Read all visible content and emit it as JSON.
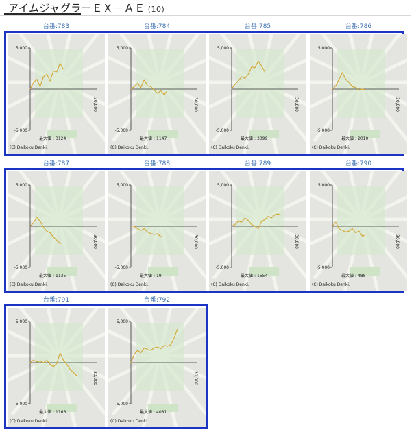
{
  "header": {
    "title": "アイムジャグラーＥＸ－ＡＥ",
    "count": "(10)"
  },
  "graph_common": {
    "y_top": "5,000",
    "y_bottom": "-5,000",
    "x_max": "30,000",
    "max_label": "最大値",
    "copyright": "(C) Daikoku Denki.",
    "line_color": "#d4a93a"
  },
  "machines": [
    {
      "label": "台番:783",
      "max": "3124",
      "points": [
        [
          0,
          0
        ],
        [
          1500,
          800
        ],
        [
          3000,
          1200
        ],
        [
          4500,
          300
        ],
        [
          6000,
          1500
        ],
        [
          7500,
          1800
        ],
        [
          9000,
          1000
        ],
        [
          10500,
          2200
        ],
        [
          12000,
          2100
        ],
        [
          13500,
          3124
        ],
        [
          15000,
          2400
        ]
      ]
    },
    {
      "label": "台番:784",
      "max": "1147",
      "points": [
        [
          0,
          0
        ],
        [
          1500,
          300
        ],
        [
          3000,
          700
        ],
        [
          4500,
          200
        ],
        [
          6000,
          1147
        ],
        [
          7500,
          400
        ],
        [
          9000,
          300
        ],
        [
          10500,
          -100
        ],
        [
          12000,
          -500
        ],
        [
          13500,
          -200
        ],
        [
          15000,
          -700
        ],
        [
          16000,
          -300
        ]
      ]
    },
    {
      "label": "台番:785",
      "max": "3399",
      "points": [
        [
          0,
          0
        ],
        [
          1500,
          600
        ],
        [
          3000,
          1000
        ],
        [
          4500,
          1500
        ],
        [
          6000,
          1300
        ],
        [
          7500,
          1800
        ],
        [
          9000,
          2700
        ],
        [
          10500,
          2600
        ],
        [
          12000,
          3399
        ],
        [
          13500,
          2800
        ],
        [
          15000,
          2100
        ]
      ]
    },
    {
      "label": "台番:786",
      "max": "2010",
      "points": [
        [
          0,
          0
        ],
        [
          1500,
          400
        ],
        [
          3000,
          1200
        ],
        [
          4500,
          2010
        ],
        [
          6000,
          1200
        ],
        [
          7500,
          800
        ],
        [
          9000,
          300
        ],
        [
          10500,
          200
        ],
        [
          12000,
          -100
        ],
        [
          13500,
          0
        ],
        [
          15000,
          -100
        ]
      ]
    },
    {
      "label": "台番:787",
      "max": "1135",
      "points": [
        [
          0,
          0
        ],
        [
          1500,
          400
        ],
        [
          3000,
          1135
        ],
        [
          4500,
          600
        ],
        [
          6000,
          -100
        ],
        [
          7500,
          -600
        ],
        [
          9000,
          -800
        ],
        [
          10500,
          -1300
        ],
        [
          12000,
          -1700
        ],
        [
          13500,
          -2100
        ],
        [
          14500,
          -2000
        ]
      ]
    },
    {
      "label": "台番:788",
      "max": "19",
      "points": [
        [
          0,
          0
        ],
        [
          1500,
          19
        ],
        [
          3000,
          -300
        ],
        [
          4500,
          -500
        ],
        [
          6000,
          -300
        ],
        [
          7500,
          -700
        ],
        [
          9000,
          -900
        ],
        [
          10500,
          -1000
        ],
        [
          12000,
          -900
        ],
        [
          13500,
          -1300
        ],
        [
          14000,
          -1200
        ]
      ]
    },
    {
      "label": "台番:789",
      "max": "1554",
      "points": [
        [
          0,
          0
        ],
        [
          1500,
          200
        ],
        [
          3000,
          600
        ],
        [
          4500,
          500
        ],
        [
          6000,
          1000
        ],
        [
          7500,
          700
        ],
        [
          9000,
          200
        ],
        [
          10500,
          0
        ],
        [
          12000,
          -300
        ],
        [
          13500,
          600
        ],
        [
          15000,
          800
        ],
        [
          16500,
          1200
        ],
        [
          18000,
          1000
        ],
        [
          19500,
          1400
        ],
        [
          21000,
          1500
        ],
        [
          22000,
          1300
        ]
      ]
    },
    {
      "label": "台番:790",
      "max": "488",
      "points": [
        [
          0,
          0
        ],
        [
          1500,
          488
        ],
        [
          3000,
          -300
        ],
        [
          4500,
          -500
        ],
        [
          6000,
          -700
        ],
        [
          7500,
          -600
        ],
        [
          9000,
          -300
        ],
        [
          10500,
          -800
        ],
        [
          12000,
          -600
        ],
        [
          13500,
          -1200
        ],
        [
          14500,
          -1100
        ]
      ]
    },
    {
      "label": "台番:791",
      "max": "1166",
      "points": [
        [
          0,
          0
        ],
        [
          1500,
          300
        ],
        [
          3000,
          100
        ],
        [
          4500,
          200
        ],
        [
          6000,
          0
        ],
        [
          7500,
          300
        ],
        [
          9000,
          -200
        ],
        [
          10500,
          -500
        ],
        [
          12000,
          -100
        ],
        [
          13500,
          1166
        ],
        [
          15000,
          300
        ],
        [
          16500,
          -200
        ],
        [
          18000,
          -800
        ],
        [
          19500,
          -1200
        ],
        [
          21000,
          -1600
        ]
      ]
    },
    {
      "label": "台番:792",
      "max": "4081",
      "points": [
        [
          0,
          0
        ],
        [
          1500,
          1000
        ],
        [
          3000,
          1500
        ],
        [
          4500,
          1200
        ],
        [
          6000,
          1800
        ],
        [
          7500,
          1600
        ],
        [
          9000,
          1500
        ],
        [
          10500,
          1800
        ],
        [
          12000,
          1900
        ],
        [
          13500,
          1700
        ],
        [
          15000,
          2100
        ],
        [
          16500,
          2000
        ],
        [
          18000,
          2200
        ],
        [
          19500,
          3000
        ],
        [
          21000,
          4081
        ]
      ]
    }
  ]
}
